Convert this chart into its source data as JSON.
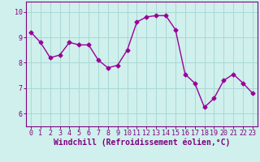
{
  "x": [
    0,
    1,
    2,
    3,
    4,
    5,
    6,
    7,
    8,
    9,
    10,
    11,
    12,
    13,
    14,
    15,
    16,
    17,
    18,
    19,
    20,
    21,
    22,
    23
  ],
  "y": [
    9.2,
    8.8,
    8.2,
    8.3,
    8.8,
    8.7,
    8.7,
    8.1,
    7.8,
    7.9,
    8.5,
    9.6,
    9.8,
    9.85,
    9.85,
    9.3,
    7.55,
    7.2,
    6.25,
    6.6,
    7.3,
    7.55,
    7.2,
    6.8
  ],
  "line_color": "#990099",
  "marker": "D",
  "marker_size": 2.5,
  "bg_color": "#cff0ec",
  "grid_color": "#aad8d3",
  "xlabel": "Windchill (Refroidissement éolien,°C)",
  "ylim": [
    5.5,
    10.4
  ],
  "xlim": [
    -0.5,
    23.5
  ],
  "yticks": [
    6,
    7,
    8,
    9,
    10
  ],
  "xticks": [
    0,
    1,
    2,
    3,
    4,
    5,
    6,
    7,
    8,
    9,
    10,
    11,
    12,
    13,
    14,
    15,
    16,
    17,
    18,
    19,
    20,
    21,
    22,
    23
  ],
  "tick_color": "#800080",
  "label_color": "#800080",
  "font_size_xlabel": 7.0,
  "font_size_ticks": 6.0,
  "linewidth": 1.0
}
